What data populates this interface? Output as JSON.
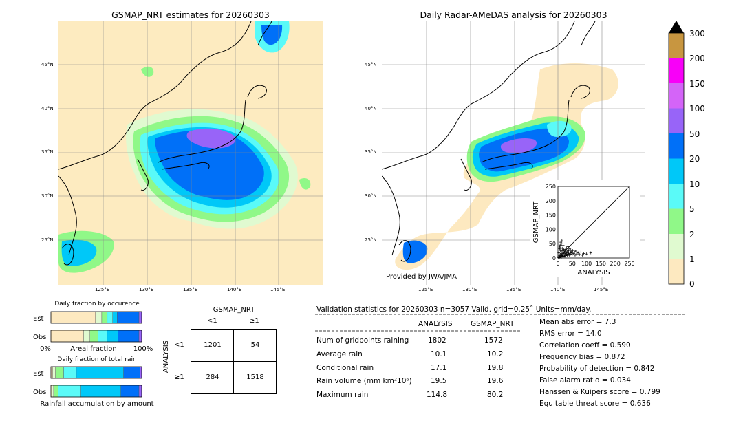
{
  "colors": {
    "land": "#fdebc0",
    "ocean_bg": "#fdebc0",
    "c0": "#fde9c0",
    "c1": "#e0fad0",
    "c2": "#90f888",
    "c5": "#5afaf8",
    "c10": "#00c8f8",
    "c20": "#0070f8",
    "c50": "#9864f8",
    "c100": "#d464f8",
    "c150": "#f800f8",
    "c200": "#c89640",
    "c300": "#000000"
  },
  "left_map": {
    "title": "GSMAP_NRT estimates for 20260303",
    "lat_labels": [
      "45°N",
      "40°N",
      "35°N",
      "30°N",
      "25°N"
    ],
    "lon_labels": [
      "125°E",
      "130°E",
      "135°E",
      "140°E",
      "145°E"
    ]
  },
  "right_map": {
    "title": "Daily Radar-AMeDAS analysis for 20260303",
    "lat_labels": [
      "45°N",
      "40°N",
      "35°N",
      "30°N",
      "25°N"
    ],
    "lon_labels": [
      "125°E",
      "130°E",
      "135°E",
      "140°E",
      "145°E"
    ],
    "credit": "Provided by JWA/JMA"
  },
  "colorbar": {
    "labels": [
      "300",
      "200",
      "150",
      "100",
      "50",
      "20",
      "10",
      "5",
      "2",
      "1",
      "0"
    ]
  },
  "chart_data": [
    {
      "type": "scatter",
      "xlabel": "ANALYSIS",
      "ylabel": "GSMAP_NRT",
      "xlim": [
        0,
        250
      ],
      "ylim": [
        0,
        250
      ],
      "ticks": [
        "0",
        "50",
        "100",
        "150",
        "200",
        "250"
      ],
      "diagonal": true,
      "points": [
        [
          2,
          1
        ],
        [
          3,
          5
        ],
        [
          5,
          2
        ],
        [
          6,
          8
        ],
        [
          8,
          4
        ],
        [
          9,
          12
        ],
        [
          10,
          6
        ],
        [
          11,
          15
        ],
        [
          12,
          3
        ],
        [
          13,
          9
        ],
        [
          14,
          20
        ],
        [
          15,
          11
        ],
        [
          16,
          7
        ],
        [
          17,
          25
        ],
        [
          18,
          14
        ],
        [
          19,
          5
        ],
        [
          20,
          18
        ],
        [
          21,
          30
        ],
        [
          22,
          10
        ],
        [
          23,
          22
        ],
        [
          24,
          6
        ],
        [
          25,
          16
        ],
        [
          26,
          28
        ],
        [
          27,
          12
        ],
        [
          28,
          8
        ],
        [
          29,
          20
        ],
        [
          30,
          35
        ],
        [
          31,
          14
        ],
        [
          32,
          9
        ],
        [
          33,
          24
        ],
        [
          34,
          18
        ],
        [
          35,
          40
        ],
        [
          36,
          12
        ],
        [
          37,
          26
        ],
        [
          38,
          16
        ],
        [
          40,
          10
        ],
        [
          41,
          32
        ],
        [
          42,
          20
        ],
        [
          44,
          14
        ],
        [
          45,
          28
        ],
        [
          46,
          22
        ],
        [
          48,
          18
        ],
        [
          50,
          12
        ],
        [
          52,
          26
        ],
        [
          55,
          16
        ],
        [
          58,
          20
        ],
        [
          60,
          10
        ],
        [
          62,
          24
        ],
        [
          65,
          14
        ],
        [
          70,
          18
        ],
        [
          75,
          12
        ],
        [
          80,
          20
        ],
        [
          85,
          10
        ],
        [
          90,
          16
        ],
        [
          100,
          14
        ],
        [
          114.8,
          18
        ],
        [
          7,
          38
        ],
        [
          9,
          45
        ],
        [
          12,
          50
        ],
        [
          5,
          42
        ],
        [
          15,
          34
        ],
        [
          4,
          28
        ],
        [
          6,
          32
        ],
        [
          3,
          18
        ],
        [
          18,
          44
        ],
        [
          10,
          55
        ],
        [
          14,
          60
        ],
        [
          8,
          26
        ]
      ]
    },
    {
      "type": "bar",
      "title": "Daily fraction by occurence",
      "categories": [
        "Est",
        "Obs"
      ],
      "xlabel": "Areal fraction",
      "x_tick_labels": [
        "0%",
        "100%"
      ],
      "series": [
        {
          "values": [
            0.49,
            0.36
          ]
        },
        {
          "values": [
            0.07,
            0.07
          ]
        },
        {
          "values": [
            0.06,
            0.09
          ]
        },
        {
          "values": [
            0.06,
            0.1
          ]
        },
        {
          "values": [
            0.05,
            0.12
          ]
        },
        {
          "values": [
            0.24,
            0.23
          ]
        },
        {
          "values": [
            0.03,
            0.03
          ]
        }
      ]
    },
    {
      "type": "bar",
      "title": "Daily fraction of total rain",
      "categories": [
        "Est",
        "Obs"
      ],
      "xlabel": "Rainfall accumulation by amount",
      "series": [
        {
          "values": [
            0.02,
            0.01
          ]
        },
        {
          "values": [
            0.03,
            0.02
          ]
        },
        {
          "values": [
            0.09,
            0.05
          ]
        },
        {
          "values": [
            0.14,
            0.25
          ]
        },
        {
          "values": [
            0.52,
            0.44
          ]
        },
        {
          "values": [
            0.18,
            0.2
          ]
        },
        {
          "values": [
            0.02,
            0.03
          ]
        }
      ]
    },
    {
      "type": "table",
      "title": "GSMAP_NRT",
      "col_labels": [
        "<1",
        "≥1"
      ],
      "row_axis": "ANALYSIS",
      "row_labels": [
        "<1",
        "≥1"
      ],
      "cells": [
        [
          "1201",
          "54"
        ],
        [
          "284",
          "1518"
        ]
      ]
    }
  ],
  "validation": {
    "header": "Validation statistics for 20260303  n=3057 Valid. grid=0.25˚ Units=mm/day.",
    "col_analysis": "ANALYSIS",
    "col_gsmap": "GSMAP_NRT",
    "rows": [
      {
        "label": "Num of gridpoints raining",
        "analysis": "1802",
        "gsmap": "1572"
      },
      {
        "label": "Average rain",
        "analysis": "10.1",
        "gsmap": "10.2"
      },
      {
        "label": "Conditional rain",
        "analysis": "17.1",
        "gsmap": "19.8"
      },
      {
        "label": "Rain volume (mm km²10⁶)",
        "analysis": "19.5",
        "gsmap": "19.6"
      },
      {
        "label": "Maximum rain",
        "analysis": "114.8",
        "gsmap": "80.2"
      }
    ],
    "scores": [
      "Mean abs error =    7.3",
      "RMS error =   14.0",
      "Correlation coeff =  0.590",
      "Frequency bias =  0.872",
      "Probability of detection =  0.842",
      "False alarm ratio =  0.034",
      "Hanssen & Kuipers score =  0.799",
      "Equitable threat score =  0.636"
    ]
  }
}
